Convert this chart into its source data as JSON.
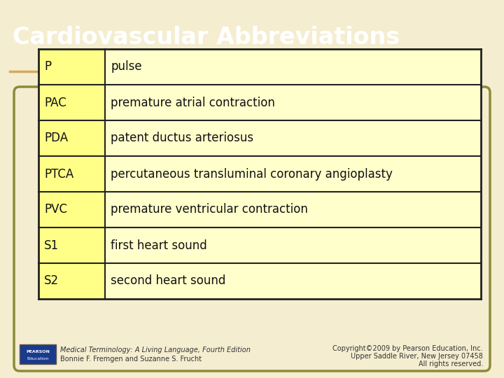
{
  "title": "Cardiovascular Abbreviations",
  "title_bg": "#9B3000",
  "title_color": "#FFFFFF",
  "slide_bg": "#F5EDD0",
  "outer_box_color": "#8B8B3A",
  "table_border_color": "#222222",
  "col1_bg": "#FFFF88",
  "col2_bg": "#FFFFCC",
  "rows": [
    [
      "P",
      "pulse"
    ],
    [
      "PAC",
      "premature atrial contraction"
    ],
    [
      "PDA",
      "patent ductus arteriosus"
    ],
    [
      "PTCA",
      "percutaneous transluminal coronary angioplasty"
    ],
    [
      "PVC",
      "premature ventricular contraction"
    ],
    [
      "S1",
      "first heart sound"
    ],
    [
      "S2",
      "second heart sound"
    ]
  ],
  "footer_left_line1_italic": "Medical Terminology: A Living Language,",
  "footer_left_line1_normal": " Fourth Edition",
  "footer_left_line2": "Bonnie F. Fremgen and Suzanne S. Frucht",
  "footer_right_line1": "Copyright©2009 by Pearson Education, Inc.",
  "footer_right_line2": "Upper Saddle River, New Jersey 07458",
  "footer_right_line3": "All rights reserved.",
  "table_text_color": "#111111",
  "title_fontsize": 24,
  "table_fontsize": 12,
  "footer_fontsize": 7
}
